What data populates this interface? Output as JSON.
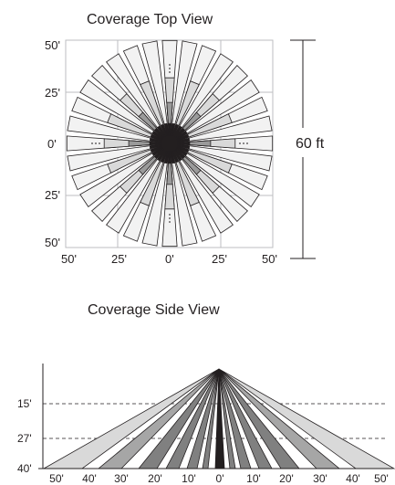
{
  "top_view": {
    "title": "Coverage Top View",
    "y_ticks": [
      "50'",
      "25'",
      "0'",
      "25'",
      "50'"
    ],
    "x_ticks": [
      "50'",
      "25'",
      "0'",
      "25'",
      "50'"
    ],
    "dimension_label": "60 ft",
    "colors": {
      "outer": "#f2f2f2",
      "mid": "#d9d9d9",
      "inner": "#9a9a9a",
      "center": "#231f20",
      "stroke": "#231f20",
      "grid": "#bcbec0"
    }
  },
  "side_view": {
    "title": "Coverage Side View",
    "y_ticks": [
      "15'",
      "27'",
      "40'"
    ],
    "x_ticks": [
      "50'",
      "40'",
      "30'",
      "20'",
      "10'",
      "0'",
      "10'",
      "20'",
      "30'",
      "40'",
      "50'"
    ],
    "colors": {
      "outer": "#d9d9d9",
      "middle": "#a6a6a6",
      "inner": "#808080",
      "center": "#231f20",
      "stroke": "#231f20"
    }
  }
}
